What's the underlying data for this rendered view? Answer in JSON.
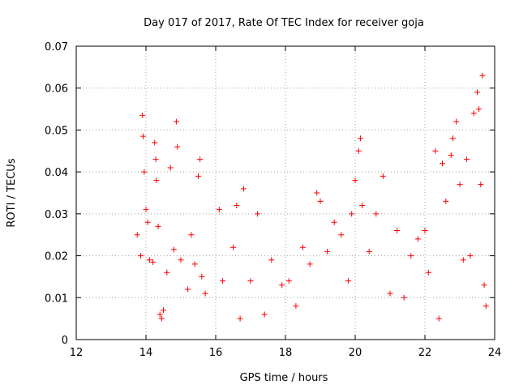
{
  "chart_data": {
    "type": "scatter",
    "title": "Day 017 of 2017, Rate Of TEC Index for receiver goja",
    "xlabel": "GPS time / hours",
    "ylabel": "ROTI / TECUs",
    "xlim": [
      12,
      24
    ],
    "ylim": [
      0,
      0.07
    ],
    "xticks": [
      "12",
      "14",
      "16",
      "18",
      "20",
      "22",
      "24"
    ],
    "yticks": [
      "0",
      "0.01",
      "0.02",
      "0.03",
      "0.04",
      "0.05",
      "0.06",
      "0.07"
    ],
    "grid": true,
    "marker": "+",
    "color": "#ff0000",
    "series": [
      {
        "name": "ROTI",
        "points": [
          [
            13.75,
            0.025
          ],
          [
            13.85,
            0.02
          ],
          [
            13.9,
            0.0535
          ],
          [
            13.92,
            0.0485
          ],
          [
            13.95,
            0.04
          ],
          [
            14.0,
            0.031
          ],
          [
            14.05,
            0.028
          ],
          [
            14.1,
            0.019
          ],
          [
            14.2,
            0.0185
          ],
          [
            14.25,
            0.047
          ],
          [
            14.28,
            0.043
          ],
          [
            14.3,
            0.038
          ],
          [
            14.35,
            0.027
          ],
          [
            14.4,
            0.006
          ],
          [
            14.45,
            0.005
          ],
          [
            14.5,
            0.007
          ],
          [
            14.6,
            0.016
          ],
          [
            14.7,
            0.041
          ],
          [
            14.8,
            0.0215
          ],
          [
            14.87,
            0.052
          ],
          [
            14.9,
            0.046
          ],
          [
            15.0,
            0.019
          ],
          [
            15.2,
            0.012
          ],
          [
            15.3,
            0.025
          ],
          [
            15.4,
            0.018
          ],
          [
            15.5,
            0.039
          ],
          [
            15.55,
            0.043
          ],
          [
            15.6,
            0.015
          ],
          [
            15.7,
            0.011
          ],
          [
            16.1,
            0.031
          ],
          [
            16.2,
            0.014
          ],
          [
            16.5,
            0.022
          ],
          [
            16.6,
            0.032
          ],
          [
            16.7,
            0.005
          ],
          [
            16.8,
            0.036
          ],
          [
            17.0,
            0.014
          ],
          [
            17.2,
            0.03
          ],
          [
            17.4,
            0.006
          ],
          [
            17.6,
            0.019
          ],
          [
            17.9,
            0.013
          ],
          [
            18.1,
            0.014
          ],
          [
            18.3,
            0.008
          ],
          [
            18.5,
            0.022
          ],
          [
            18.7,
            0.018
          ],
          [
            18.9,
            0.035
          ],
          [
            19.0,
            0.033
          ],
          [
            19.2,
            0.021
          ],
          [
            19.4,
            0.028
          ],
          [
            19.6,
            0.025
          ],
          [
            19.8,
            0.014
          ],
          [
            19.9,
            0.03
          ],
          [
            20.0,
            0.038
          ],
          [
            20.1,
            0.045
          ],
          [
            20.15,
            0.048
          ],
          [
            20.2,
            0.032
          ],
          [
            20.4,
            0.021
          ],
          [
            20.6,
            0.03
          ],
          [
            20.8,
            0.039
          ],
          [
            21.0,
            0.011
          ],
          [
            21.2,
            0.026
          ],
          [
            21.4,
            0.01
          ],
          [
            21.6,
            0.02
          ],
          [
            21.8,
            0.024
          ],
          [
            22.0,
            0.026
          ],
          [
            22.1,
            0.016
          ],
          [
            22.3,
            0.045
          ],
          [
            22.4,
            0.005
          ],
          [
            22.5,
            0.042
          ],
          [
            22.6,
            0.033
          ],
          [
            22.75,
            0.044
          ],
          [
            22.8,
            0.048
          ],
          [
            22.9,
            0.052
          ],
          [
            23.0,
            0.037
          ],
          [
            23.1,
            0.019
          ],
          [
            23.2,
            0.043
          ],
          [
            23.3,
            0.02
          ],
          [
            23.4,
            0.054
          ],
          [
            23.5,
            0.059
          ],
          [
            23.55,
            0.055
          ],
          [
            23.6,
            0.037
          ],
          [
            23.65,
            0.063
          ],
          [
            23.7,
            0.013
          ],
          [
            23.75,
            0.008
          ]
        ]
      }
    ]
  }
}
